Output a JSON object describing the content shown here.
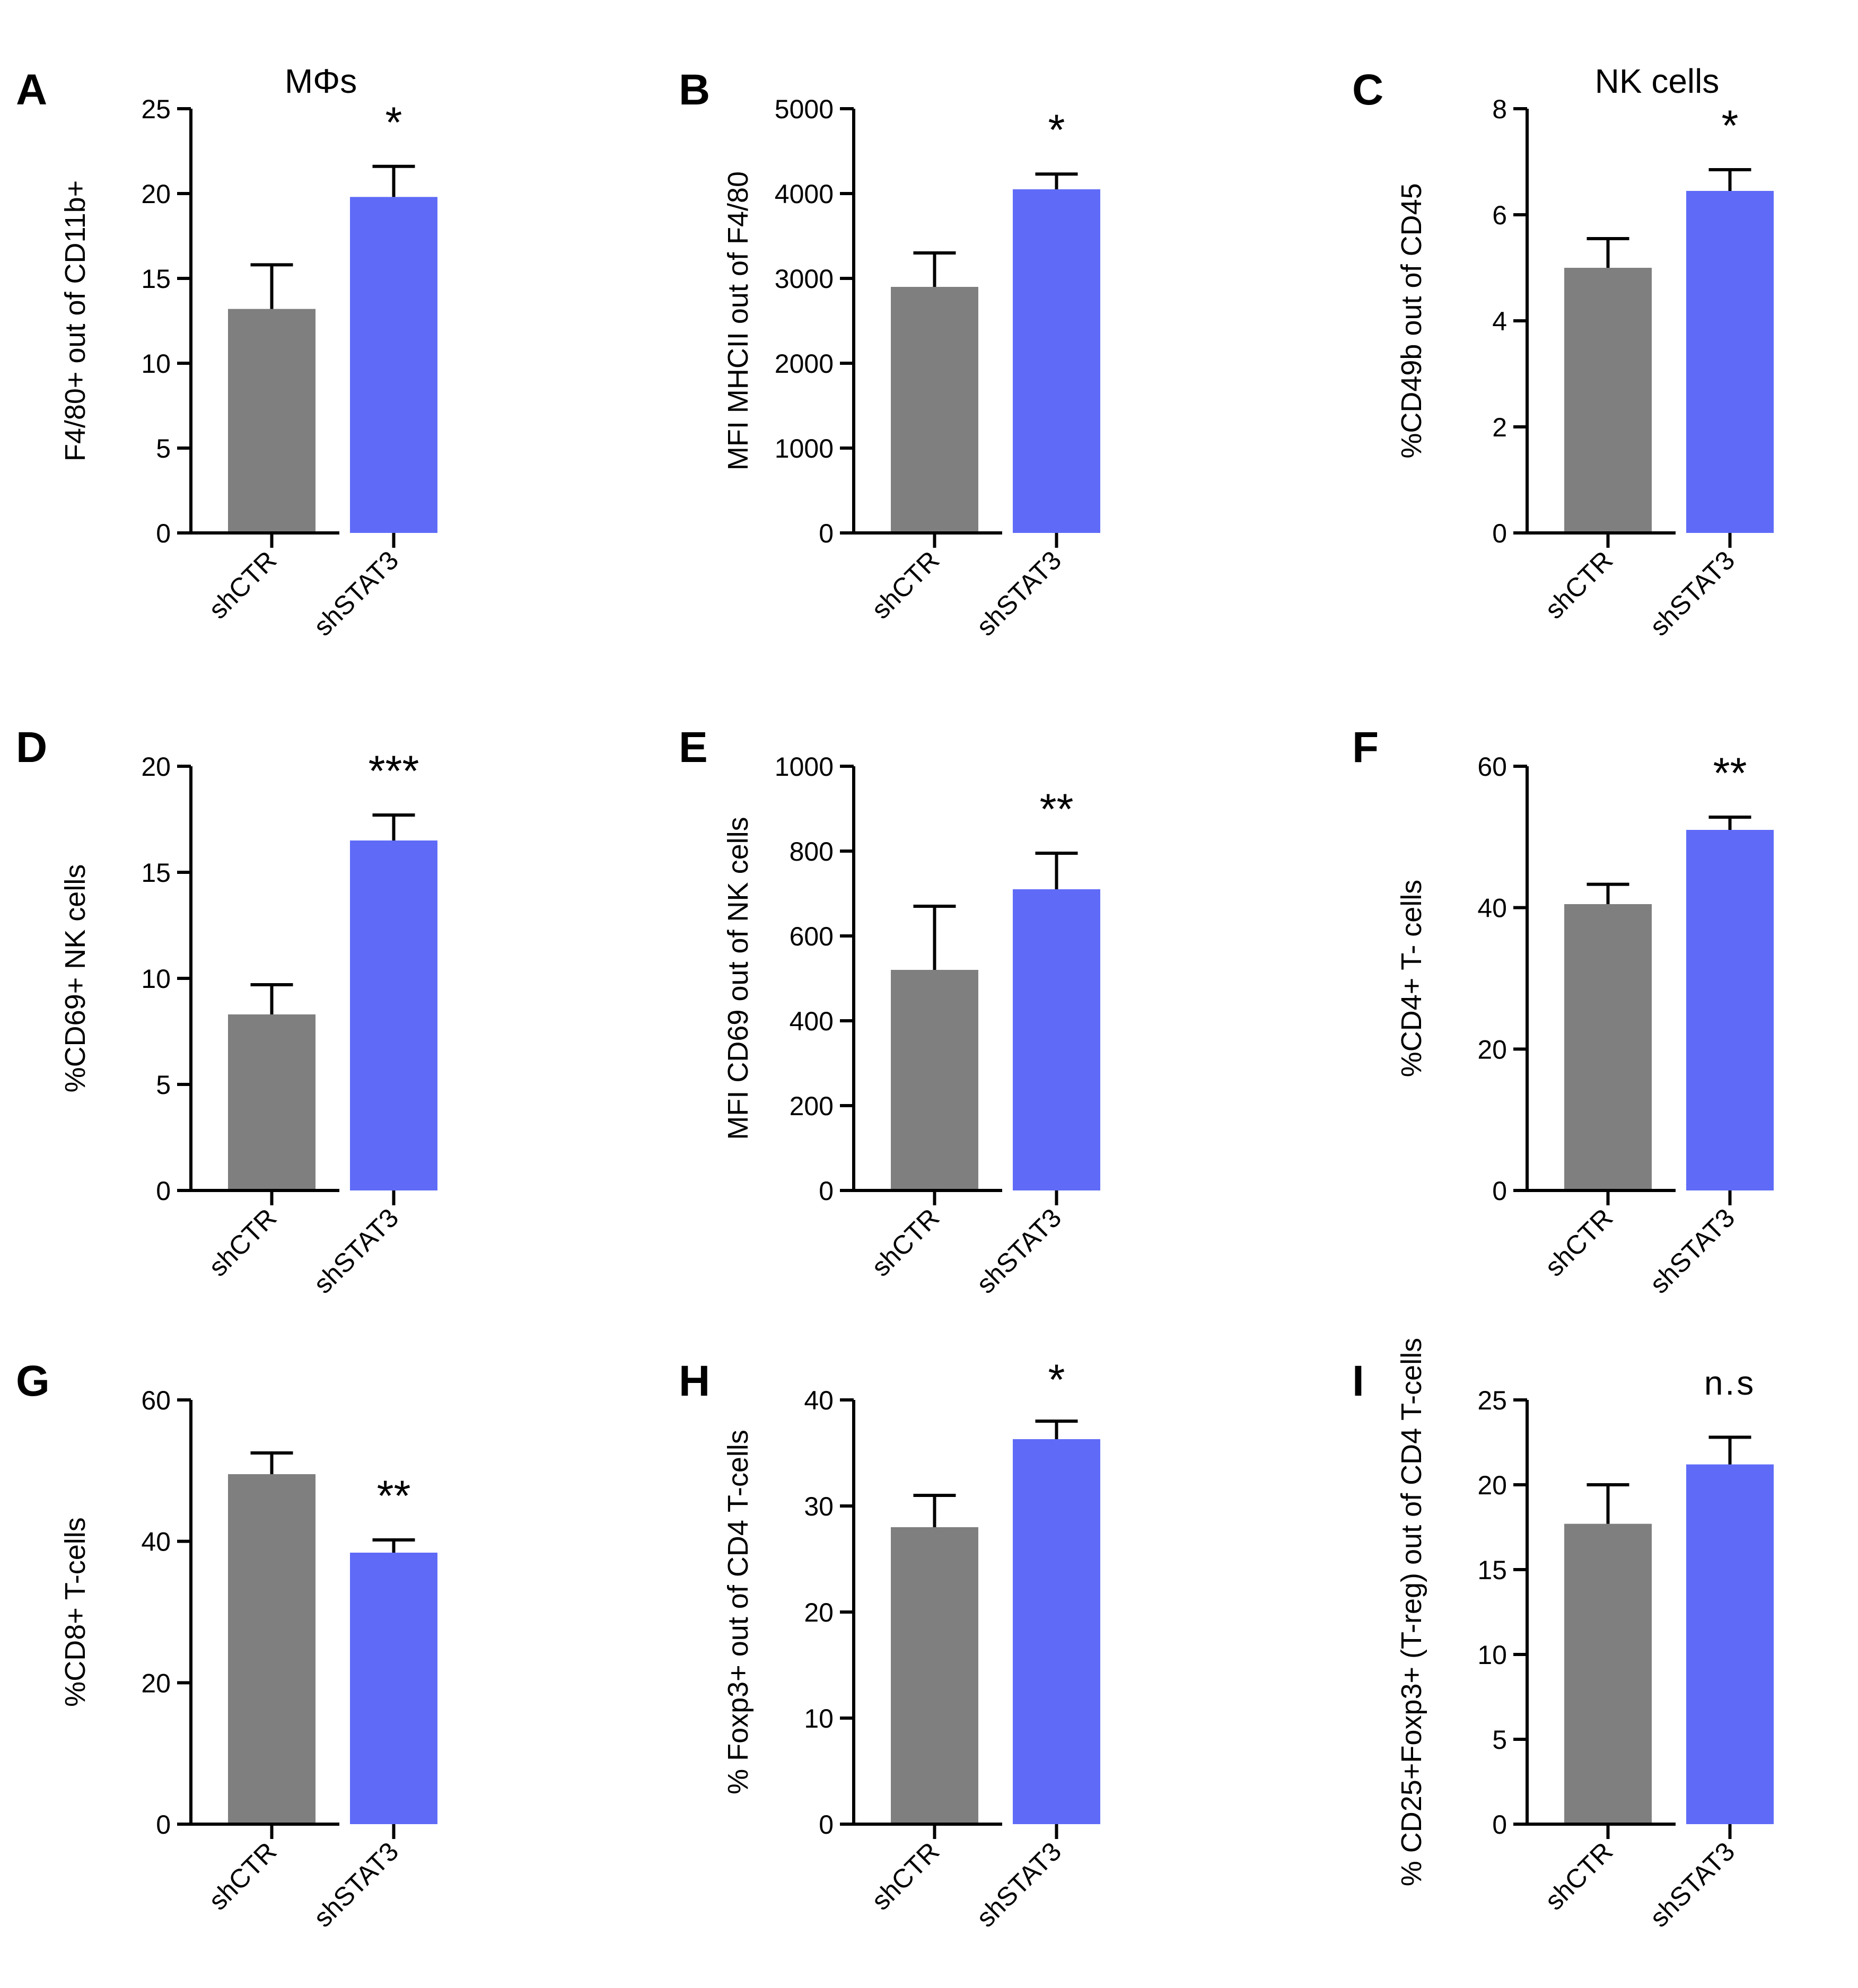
{
  "figure": {
    "colors": {
      "shCTR": "#7f7f7f",
      "shSTAT3": "#5f6bf7",
      "axis": "#000000"
    },
    "group_titles": {
      "A": "MΦs",
      "C": "NK cells"
    }
  },
  "chart_data": [
    {
      "panel": "A",
      "type": "bar",
      "title": "MΦs",
      "categories": [
        "shCTR",
        "shSTAT3"
      ],
      "values": [
        13.2,
        19.8
      ],
      "errors": [
        2.6,
        1.8
      ],
      "ylabel": "F4/80+ out of CD11b+",
      "xlabel": "",
      "ylim": [
        0,
        25
      ],
      "yticks": [
        0,
        5,
        10,
        15,
        20,
        25
      ],
      "significance": "*"
    },
    {
      "panel": "B",
      "type": "bar",
      "title": "",
      "categories": [
        "shCTR",
        "shSTAT3"
      ],
      "values": [
        2900,
        4050
      ],
      "errors": [
        400,
        180
      ],
      "ylabel": "MFI MHCII out of F4/80",
      "xlabel": "",
      "ylim": [
        0,
        5000
      ],
      "yticks": [
        0,
        1000,
        2000,
        3000,
        4000,
        5000
      ],
      "significance": "*"
    },
    {
      "panel": "C",
      "type": "bar",
      "title": "NK cells",
      "categories": [
        "shCTR",
        "shSTAT3"
      ],
      "values": [
        5.0,
        6.45
      ],
      "errors": [
        0.55,
        0.4
      ],
      "ylabel": "%CD49b out of CD45",
      "xlabel": "",
      "ylim": [
        0,
        8
      ],
      "yticks": [
        0,
        2,
        4,
        6,
        8
      ],
      "significance": "*"
    },
    {
      "panel": "D",
      "type": "bar",
      "title": "",
      "categories": [
        "shCTR",
        "shSTAT3"
      ],
      "values": [
        8.3,
        16.5
      ],
      "errors": [
        1.4,
        1.2
      ],
      "ylabel": "%CD69+ NK cells",
      "xlabel": "",
      "ylim": [
        0,
        20
      ],
      "yticks": [
        0,
        5,
        10,
        15,
        20
      ],
      "significance": "***"
    },
    {
      "panel": "E",
      "type": "bar",
      "title": "",
      "categories": [
        "shCTR",
        "shSTAT3"
      ],
      "values": [
        520,
        710
      ],
      "errors": [
        150,
        85
      ],
      "ylabel": "MFI CD69 out of NK cells",
      "xlabel": "",
      "ylim": [
        0,
        1000
      ],
      "yticks": [
        0,
        200,
        400,
        600,
        800,
        1000
      ],
      "significance": "**"
    },
    {
      "panel": "F",
      "type": "bar",
      "title": "",
      "categories": [
        "shCTR",
        "shSTAT3"
      ],
      "values": [
        40.5,
        51.0
      ],
      "errors": [
        2.8,
        1.8
      ],
      "ylabel": "%CD4+  T- cells",
      "xlabel": "",
      "ylim": [
        0,
        60
      ],
      "yticks": [
        0,
        20,
        40,
        60
      ],
      "significance": "**"
    },
    {
      "panel": "G",
      "type": "bar",
      "title": "",
      "categories": [
        "shCTR",
        "shSTAT3"
      ],
      "values": [
        49.5,
        38.4
      ],
      "errors": [
        3.0,
        1.8
      ],
      "ylabel": "%CD8+ T-cells",
      "xlabel": "",
      "ylim": [
        0,
        60
      ],
      "yticks": [
        0,
        20,
        40,
        60
      ],
      "significance": "**"
    },
    {
      "panel": "H",
      "type": "bar",
      "title": "",
      "categories": [
        "shCTR",
        "shSTAT3"
      ],
      "values": [
        28.0,
        36.3
      ],
      "errors": [
        3.0,
        1.7
      ],
      "ylabel": "% Foxp3+ out of CD4 T-cells",
      "xlabel": "",
      "ylim": [
        0,
        40
      ],
      "yticks": [
        0,
        10,
        20,
        30,
        40
      ],
      "significance": "*"
    },
    {
      "panel": "I",
      "type": "bar",
      "title": "",
      "categories": [
        "shCTR",
        "shSTAT3"
      ],
      "values": [
        17.7,
        21.2
      ],
      "errors": [
        2.3,
        1.6
      ],
      "ylabel": "% CD25+Foxp3+ (T-reg) out of CD4 T-cells",
      "xlabel": "",
      "ylim": [
        0,
        25
      ],
      "yticks": [
        0,
        5,
        10,
        15,
        20,
        25
      ],
      "significance": "n.s"
    }
  ]
}
